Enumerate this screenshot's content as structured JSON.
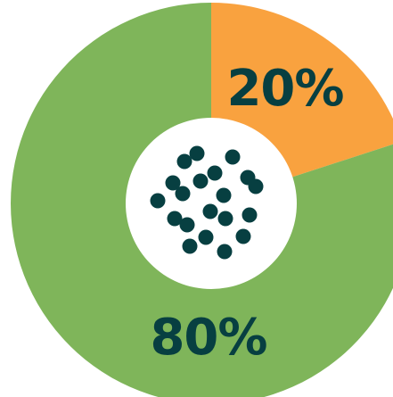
{
  "chart_data": {
    "type": "pie",
    "title": "",
    "slices": [
      {
        "label": "20%",
        "value": 20,
        "color": "#F9A23F"
      },
      {
        "label": "80%",
        "value": 80,
        "color": "#7FB55A"
      }
    ]
  },
  "center_icon": "dot-cluster-icon",
  "colors": {
    "label_text": "#073F41",
    "center_fill": "#FFFFFF",
    "dots": "#073F41",
    "background": "#FFFFFF"
  }
}
